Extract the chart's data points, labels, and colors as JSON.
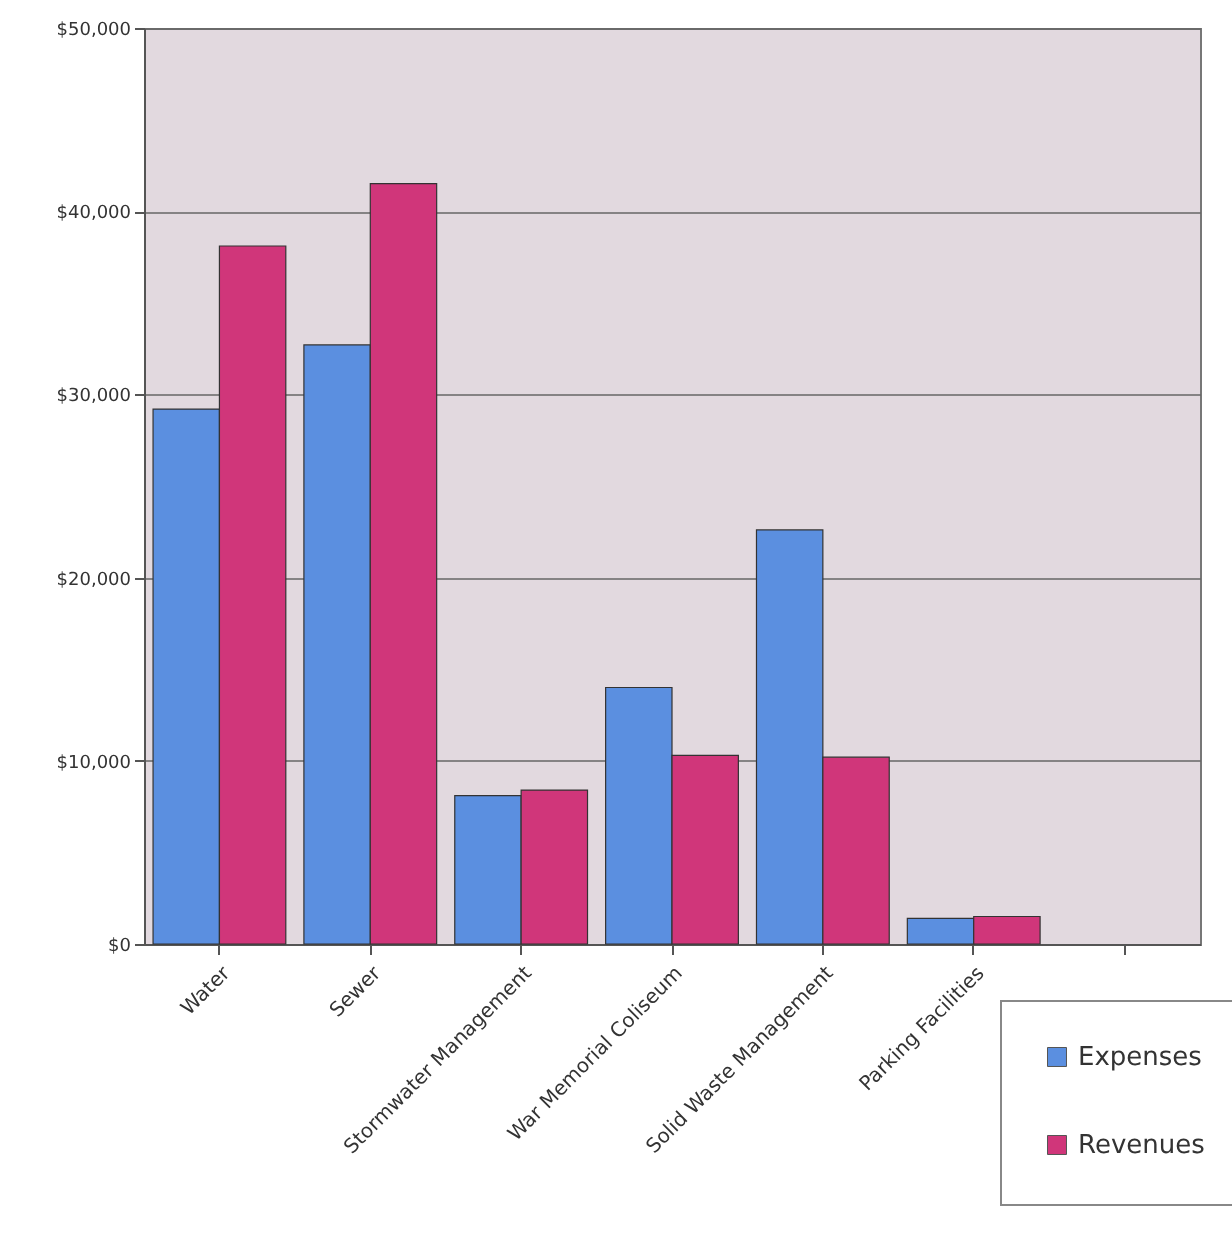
{
  "chart_data": {
    "type": "bar",
    "categories": [
      "Water",
      "Sewer",
      "Stormwater Management",
      "War Memorial Coliseum",
      "Solid Waste Management",
      "Parking Facilities",
      null
    ],
    "series": [
      {
        "name": "Expenses",
        "color": "#5b8fe0",
        "values": [
          29200,
          32700,
          8100,
          14000,
          22600,
          1400,
          null
        ]
      },
      {
        "name": "Revenues",
        "color": "#d0367a",
        "values": [
          38100,
          41500,
          8400,
          10300,
          10200,
          1500,
          null
        ]
      }
    ],
    "ylim": [
      0,
      50000
    ],
    "yticks": [
      {
        "value": 0,
        "label": "$0"
      },
      {
        "value": 10000,
        "label": "$10,000"
      },
      {
        "value": 20000,
        "label": "$20,000"
      },
      {
        "value": 30000,
        "label": "$30,000"
      },
      {
        "value": 40000,
        "label": "$40,000"
      },
      {
        "value": 50000,
        "label": "$50,000"
      }
    ],
    "grid": "y",
    "legend": "bottom right"
  }
}
